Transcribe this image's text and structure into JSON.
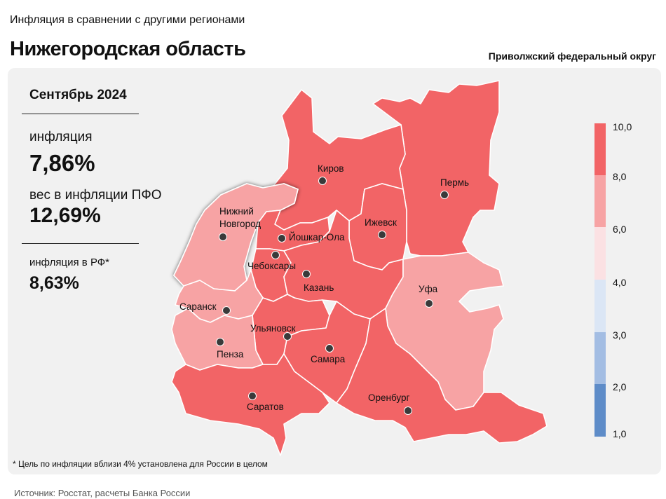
{
  "header": {
    "subtitle": "Инфляция в сравнении с другими регионами",
    "title": "Нижегородская область",
    "district": "Приволжский федеральный округ"
  },
  "info": {
    "period": "Сентябрь 2024",
    "inflation_label": "инфляция",
    "inflation_value": "7,86%",
    "weight_label": "вес в инфляции ПФО",
    "weight_value": "12,69%",
    "rf_label": "инфляция в РФ*",
    "rf_value": "8,63%"
  },
  "legend": {
    "ticks": [
      "10,0",
      "8,0",
      "6,0",
      "4,0",
      "3,0",
      "2,0",
      "1,0"
    ],
    "colors": [
      "#f26466",
      "#f7a3a4",
      "#fbe1e3",
      "#dbe6f5",
      "#a3bde3",
      "#5e8cc8"
    ]
  },
  "colors": {
    "panel": "#f1f1f1",
    "border": "#ffffff",
    "high": "#f26466",
    "mid": "#f7a3a4",
    "city_dot": "#3a3a3a"
  },
  "regions": [
    {
      "id": "kirov",
      "city": "Киров",
      "band": "8,0–10,0"
    },
    {
      "id": "perm",
      "city": "Пермь",
      "band": "8,0–10,0"
    },
    {
      "id": "nizhny",
      "city": "Нижний\nНовгород",
      "band": "6,0–8,0",
      "selected": true
    },
    {
      "id": "yoshkar",
      "city": "Йошкар-Ола",
      "band": "8,0–10,0"
    },
    {
      "id": "izhevsk",
      "city": "Ижевск",
      "band": "8,0–10,0"
    },
    {
      "id": "cheboksary",
      "city": "Чебоксары",
      "band": "8,0–10,0"
    },
    {
      "id": "kazan",
      "city": "Казань",
      "band": "8,0–10,0"
    },
    {
      "id": "ufa",
      "city": "Уфа",
      "band": "6,0–8,0"
    },
    {
      "id": "saransk",
      "city": "Саранск",
      "band": "6,0–8,0"
    },
    {
      "id": "ulyanovsk",
      "city": "Ульяновск",
      "band": "8,0–10,0"
    },
    {
      "id": "penza",
      "city": "Пенза",
      "band": "6,0–8,0"
    },
    {
      "id": "samara",
      "city": "Самара",
      "band": "8,0–10,0"
    },
    {
      "id": "saratov",
      "city": "Саратов",
      "band": "8,0–10,0"
    },
    {
      "id": "orenburg",
      "city": "Оренбург",
      "band": "8,0–10,0"
    }
  ],
  "footnote": "* Цель по инфляции вблизи 4% установлена для России в целом",
  "source": "Источник: Росстат, расчеты Банка России"
}
